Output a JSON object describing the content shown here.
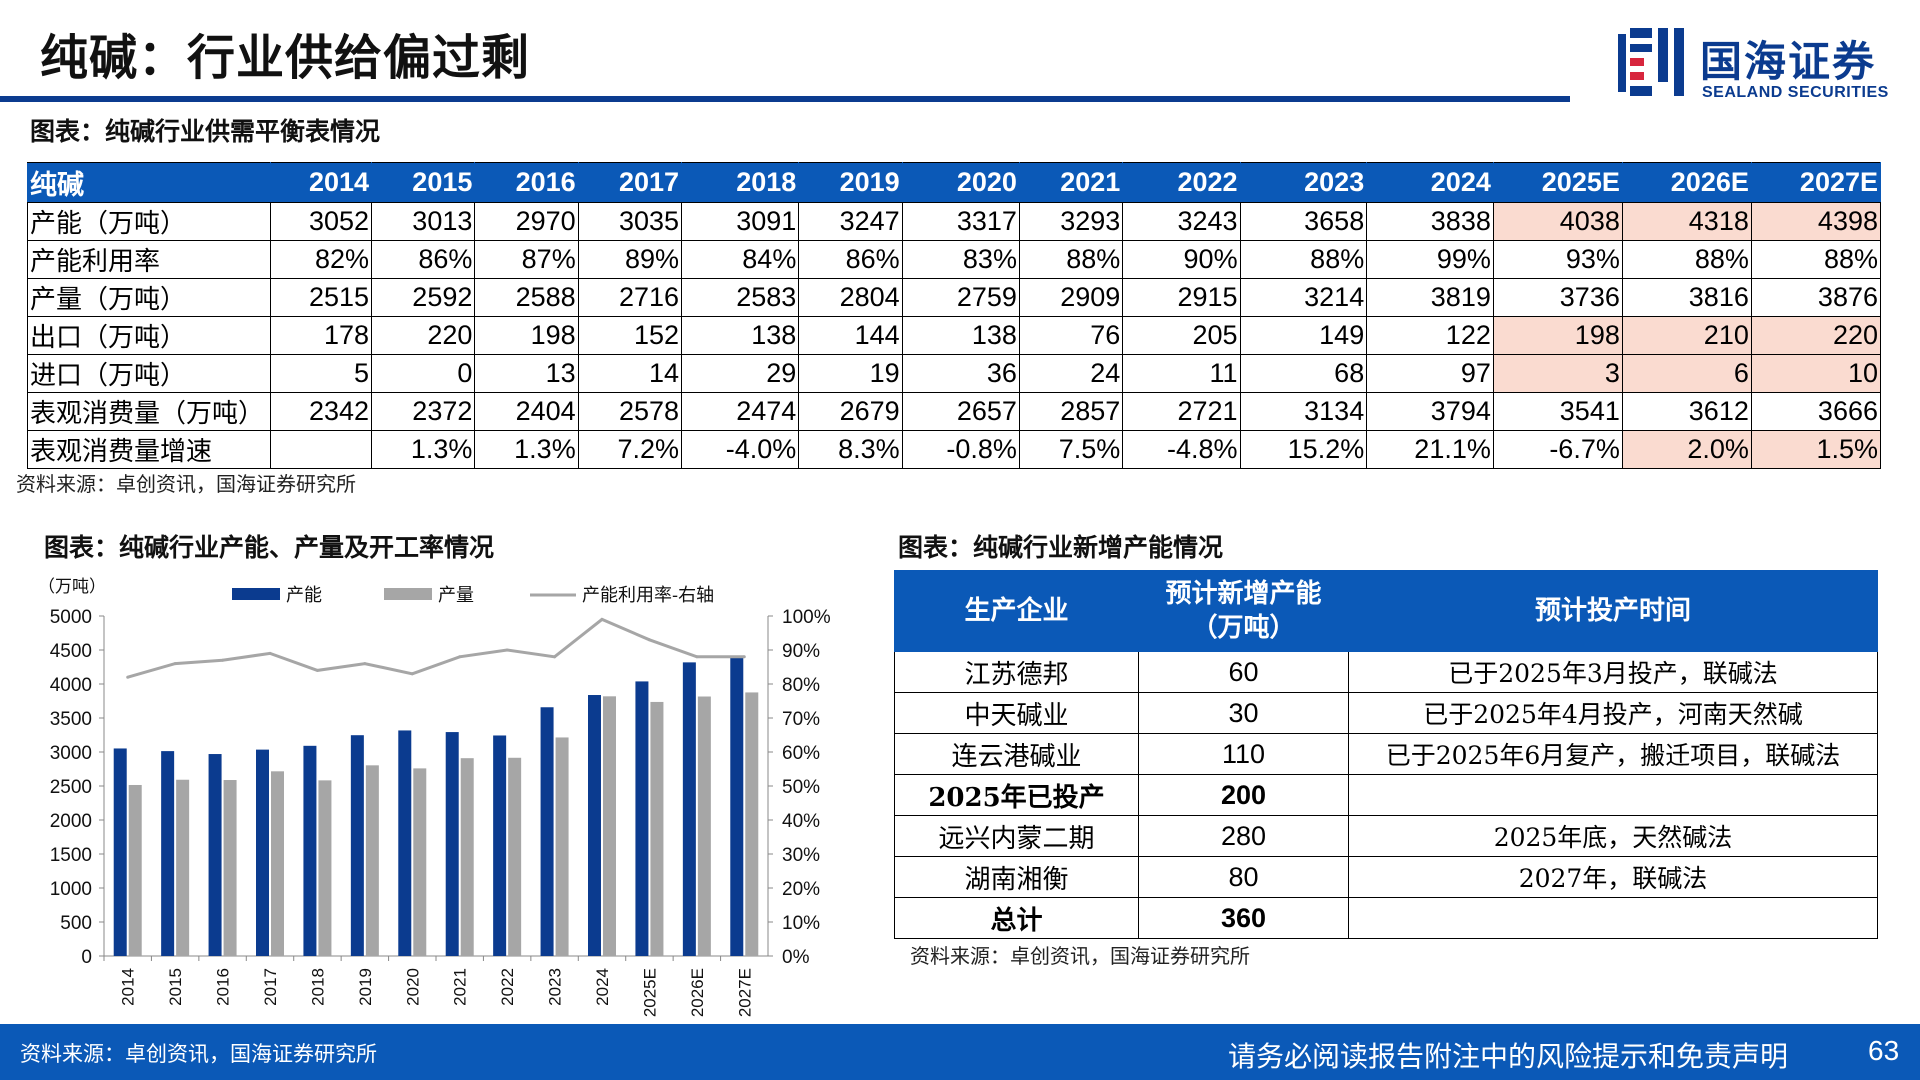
{
  "page": {
    "title": "纯碱：行业供给偏过剩",
    "logo_cn": "国海证券",
    "logo_en": "SEALAND SECURITIES",
    "page_number": "63",
    "footer_disclaimer": "请务必阅读报告附注中的风险提示和免责声明",
    "footer_source": "资料来源：卓创资讯，国海证券研究所"
  },
  "balance_table": {
    "caption": "图表：纯碱行业供需平衡表情况",
    "source": "资料来源：卓创资讯，国海证券研究所",
    "header": [
      "纯碱",
      "2014",
      "2015",
      "2016",
      "2017",
      "2018",
      "2019",
      "2020",
      "2021",
      "2022",
      "2023",
      "2024",
      "2025E",
      "2026E",
      "2027E"
    ],
    "rows": [
      {
        "label": "产能（万吨）",
        "cells": [
          "3052",
          "3013",
          "2970",
          "3035",
          "3091",
          "3247",
          "3317",
          "3293",
          "3243",
          "3658",
          "3838",
          "4038",
          "4318",
          "4398"
        ]
      },
      {
        "label": "产能利用率",
        "cells": [
          "82%",
          "86%",
          "87%",
          "89%",
          "84%",
          "86%",
          "83%",
          "88%",
          "90%",
          "88%",
          "99%",
          "93%",
          "88%",
          "88%"
        ]
      },
      {
        "label": "产量（万吨）",
        "cells": [
          "2515",
          "2592",
          "2588",
          "2716",
          "2583",
          "2804",
          "2759",
          "2909",
          "2915",
          "3214",
          "3819",
          "3736",
          "3816",
          "3876"
        ]
      },
      {
        "label": "出口（万吨）",
        "cells": [
          "178",
          "220",
          "198",
          "152",
          "138",
          "144",
          "138",
          "76",
          "205",
          "149",
          "122",
          "198",
          "210",
          "220"
        ]
      },
      {
        "label": "进口（万吨）",
        "cells": [
          "5",
          "0",
          "13",
          "14",
          "29",
          "19",
          "36",
          "24",
          "11",
          "68",
          "97",
          "3",
          "6",
          "10"
        ]
      },
      {
        "label": "表观消费量（万吨）",
        "cells": [
          "2342",
          "2372",
          "2404",
          "2578",
          "2474",
          "2679",
          "2657",
          "2857",
          "2721",
          "3134",
          "3794",
          "3541",
          "3612",
          "3666"
        ]
      },
      {
        "label": "表观消费量增速",
        "cells": [
          "",
          "1.3%",
          "1.3%",
          "7.2%",
          "-4.0%",
          "8.3%",
          "-0.8%",
          "7.5%",
          "-4.8%",
          "15.2%",
          "21.1%",
          "-6.7%",
          "2.0%",
          "1.5%"
        ]
      }
    ]
  },
  "capacity_chart": {
    "caption": "图表：纯碱行业产能、产量及开工率情况"
  },
  "chart_data": {
    "type": "bar",
    "categories": [
      "2014",
      "2015",
      "2016",
      "2017",
      "2018",
      "2019",
      "2020",
      "2021",
      "2022",
      "2023",
      "2024",
      "2025E",
      "2026E",
      "2027E"
    ],
    "series": [
      {
        "name": "产能",
        "type": "bar",
        "axis": "left",
        "color": "#0b3b8f",
        "values": [
          3052,
          3013,
          2970,
          3035,
          3091,
          3247,
          3317,
          3293,
          3243,
          3658,
          3838,
          4038,
          4318,
          4398
        ]
      },
      {
        "name": "产量",
        "type": "bar",
        "axis": "left",
        "color": "#a6a6a6",
        "values": [
          2515,
          2592,
          2588,
          2716,
          2583,
          2804,
          2759,
          2909,
          2915,
          3214,
          3819,
          3736,
          3816,
          3876
        ]
      },
      {
        "name": "产能利用率-右轴",
        "type": "line",
        "axis": "right",
        "color": "#a6a6a6",
        "values": [
          82,
          86,
          87,
          89,
          84,
          86,
          83,
          88,
          90,
          88,
          99,
          93,
          88,
          88
        ]
      }
    ],
    "ylabel": "（万吨）",
    "ylim": [
      0,
      5000
    ],
    "yticks": [
      "0",
      "500",
      "1000",
      "1500",
      "2000",
      "2500",
      "3000",
      "3500",
      "4000",
      "4500",
      "5000"
    ],
    "y2lim": [
      0,
      100
    ],
    "y2ticks": [
      "0%",
      "10%",
      "20%",
      "30%",
      "40%",
      "50%",
      "60%",
      "70%",
      "80%",
      "90%",
      "100%"
    ],
    "legend_position": "top",
    "grid": false
  },
  "new_capacity_table": {
    "caption": "图表：纯碱行业新增产能情况",
    "source": "资料来源：卓创资讯，国海证券研究所",
    "header": [
      "生产企业",
      "预计新增产能（万吨）",
      "预计投产时间"
    ],
    "rows": [
      {
        "company": "江苏德邦",
        "capacity": "60",
        "timing": "已于2025年3月投产，联碱法",
        "bold": false
      },
      {
        "company": "中天碱业",
        "capacity": "30",
        "timing": "已于2025年4月投产，河南天然碱",
        "bold": false
      },
      {
        "company": "连云港碱业",
        "capacity": "110",
        "timing": "已于2025年6月复产，搬迁项目，联碱法",
        "bold": false
      },
      {
        "company": "2025年已投产",
        "capacity": "200",
        "timing": "",
        "bold": true
      },
      {
        "company": "远兴内蒙二期",
        "capacity": "280",
        "timing": "2025年底，天然碱法",
        "bold": false
      },
      {
        "company": "湖南湘衡",
        "capacity": "80",
        "timing": "2027年，联碱法",
        "bold": false
      },
      {
        "company": "总计",
        "capacity": "360",
        "timing": "",
        "bold": true
      }
    ]
  },
  "colors": {
    "brand_blue": "#0b3b8f",
    "header_blue": "#0b59b7",
    "forecast_highlight": "#fadbd0",
    "gray_bar": "#a6a6a6"
  }
}
